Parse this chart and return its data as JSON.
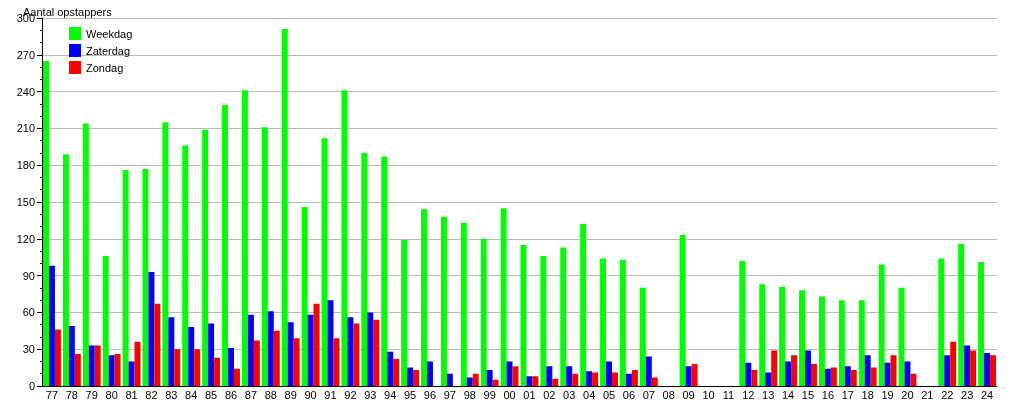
{
  "chart_data": {
    "type": "bar",
    "ylabel": "Aantal opstappers",
    "categories": [
      "77",
      "78",
      "79",
      "80",
      "81",
      "82",
      "83",
      "84",
      "85",
      "86",
      "87",
      "88",
      "89",
      "90",
      "91",
      "92",
      "93",
      "94",
      "95",
      "96",
      "97",
      "98",
      "99",
      "00",
      "01",
      "02",
      "03",
      "04",
      "05",
      "06",
      "07",
      "08",
      "09",
      "10",
      "11",
      "12",
      "13",
      "14",
      "15",
      "16",
      "17",
      "18",
      "19",
      "20",
      "21",
      "22",
      "23",
      "24"
    ],
    "series": [
      {
        "name": "Weekdag",
        "color": "#00ff00",
        "values": [
          265,
          189,
          214,
          106,
          176,
          177,
          215,
          196,
          209,
          229,
          241,
          211,
          291,
          146,
          202,
          241,
          190,
          187,
          119,
          144,
          138,
          133,
          120,
          145,
          115,
          106,
          113,
          132,
          104,
          103,
          80,
          null,
          123,
          null,
          null,
          102,
          83,
          81,
          78,
          73,
          70,
          70,
          99,
          80,
          null,
          104,
          116,
          101
        ]
      },
      {
        "name": "Zaterdag",
        "color": "#0000ff",
        "values": [
          98,
          49,
          33,
          25,
          20,
          93,
          56,
          48,
          51,
          31,
          58,
          61,
          52,
          58,
          70,
          56,
          60,
          28,
          15,
          20,
          10,
          7,
          13,
          20,
          8,
          16,
          16,
          12,
          20,
          10,
          24,
          null,
          16,
          null,
          null,
          19,
          11,
          20,
          29,
          14,
          16,
          25,
          19,
          20,
          null,
          25,
          33,
          27
        ]
      },
      {
        "name": "Zondag",
        "color": "#ff0000",
        "values": [
          46,
          26,
          33,
          26,
          36,
          67,
          30,
          30,
          23,
          14,
          37,
          45,
          39,
          67,
          39,
          51,
          54,
          22,
          13,
          0,
          0,
          10,
          5,
          16,
          8,
          6,
          10,
          11,
          11,
          13,
          7,
          null,
          18,
          null,
          null,
          13,
          29,
          25,
          18,
          15,
          13,
          15,
          25,
          10,
          null,
          36,
          29,
          25
        ]
      }
    ],
    "ylim": [
      0,
      300
    ],
    "yticks": [
      0,
      {
        "value": 10,
        "label": null
      },
      {
        "value": 20,
        "label": null
      },
      30,
      {
        "value": 40,
        "label": null
      },
      {
        "value": 50,
        "label": null
      },
      60,
      {
        "value": 70,
        "label": null
      },
      {
        "value": 80,
        "label": null
      },
      90,
      {
        "value": 100,
        "label": null
      },
      {
        "value": 110,
        "label": null
      },
      120,
      {
        "value": 130,
        "label": null
      },
      {
        "value": 140,
        "label": null
      },
      150,
      {
        "value": 160,
        "label": null
      },
      {
        "value": 170,
        "label": null
      },
      180,
      {
        "value": 190,
        "label": null
      },
      {
        "value": 200,
        "label": null
      },
      210,
      {
        "value": 220,
        "label": null
      },
      {
        "value": 230,
        "label": null
      },
      240,
      {
        "value": 250,
        "label": null
      },
      {
        "value": 260,
        "label": null
      },
      270,
      {
        "value": 280,
        "label": null
      },
      {
        "value": 290,
        "label": null
      },
      300
    ],
    "grid": "y",
    "legend": "top left"
  }
}
